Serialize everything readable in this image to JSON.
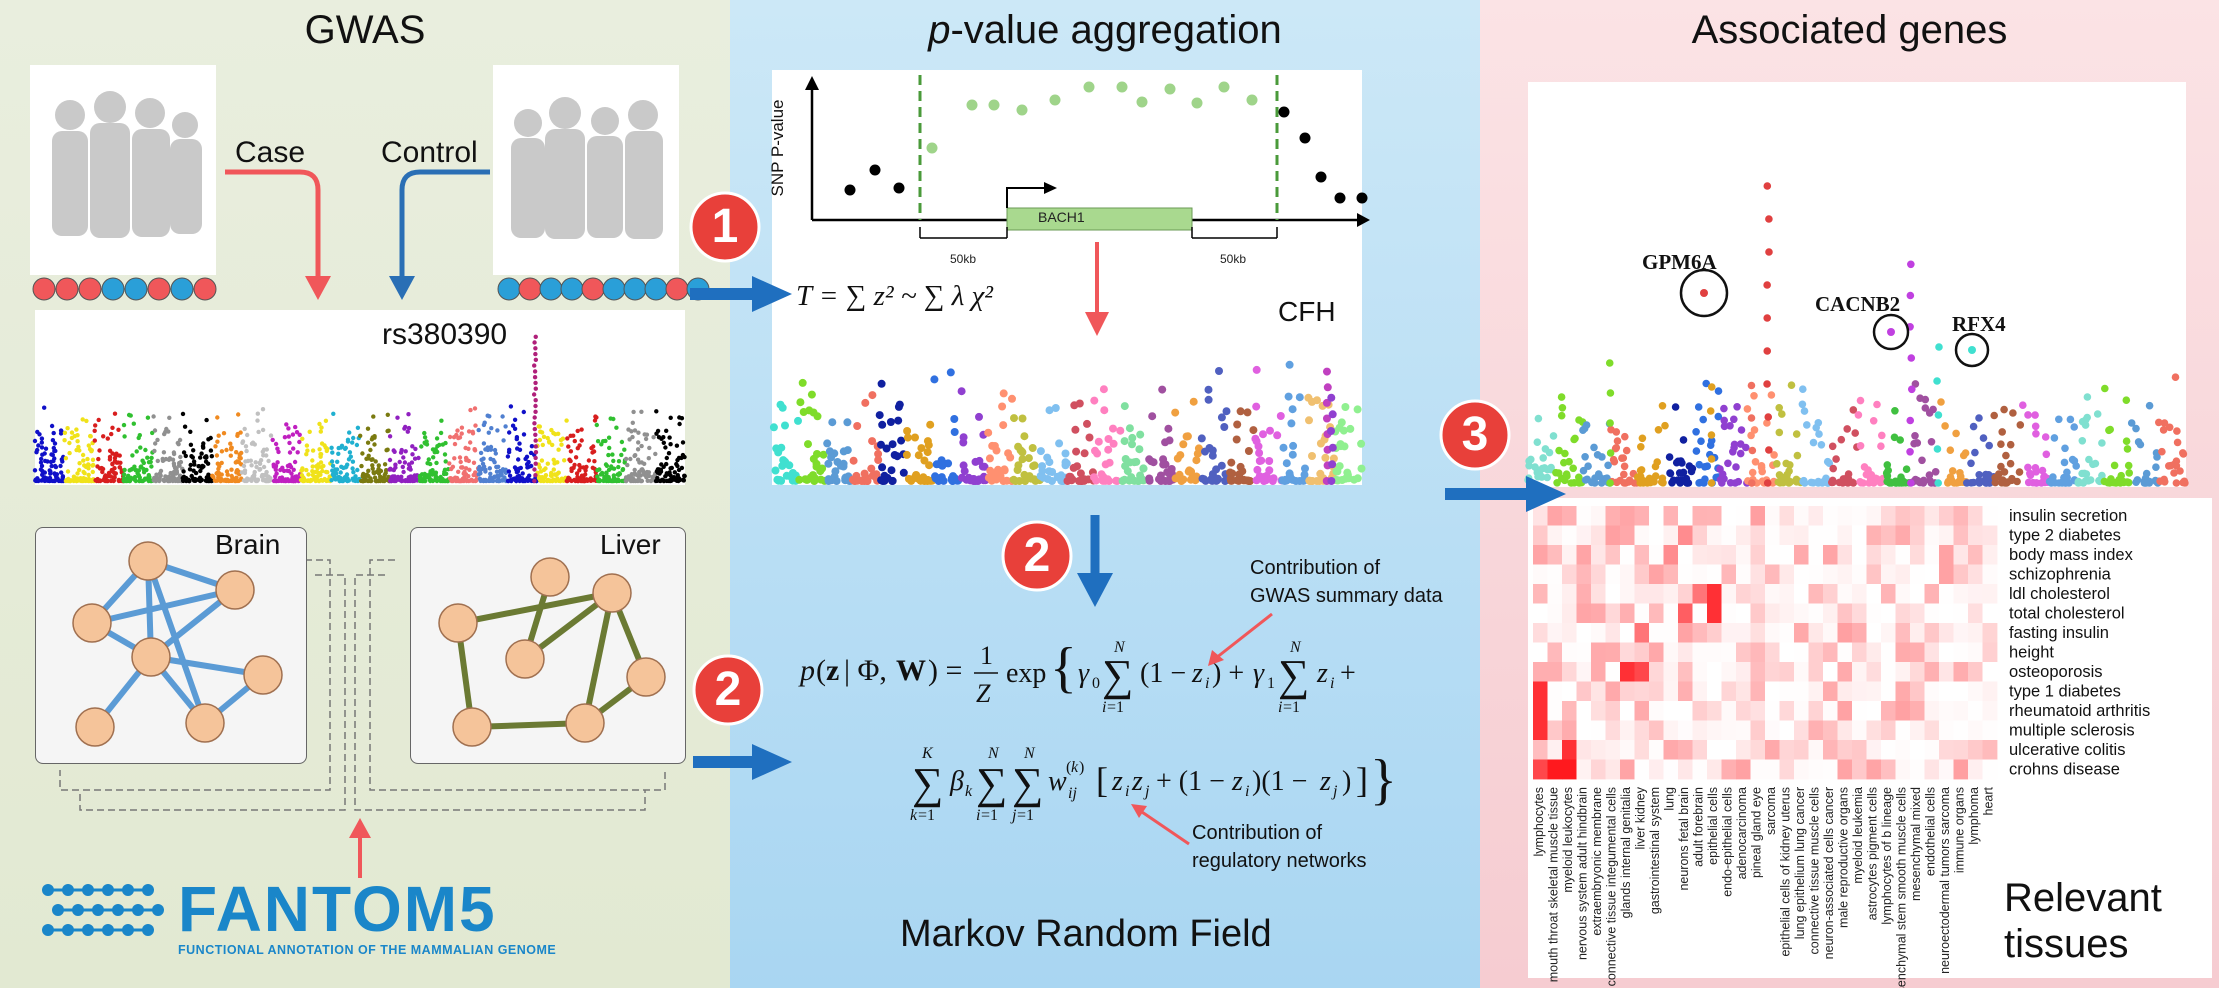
{
  "panels": {
    "gwas": {
      "title": "GWAS"
    },
    "aggregation": {
      "title_italic": "p",
      "title_rest": "-value aggregation"
    },
    "genes": {
      "title": "Associated genes"
    }
  },
  "gwas": {
    "case_label": "Case",
    "control_label": "Control",
    "snp_label": "rs380390",
    "network_labels": {
      "brain": "Brain",
      "liver": "Liver"
    },
    "fantom": {
      "logo_text": "FANTOM5",
      "subtitle": "FUNCTIONAL ANNOTATION OF THE MAMMALIAN GENOME"
    }
  },
  "steps": {
    "one": "1",
    "two": "2",
    "three": "3"
  },
  "aggregation": {
    "snp_axis_label": "SNP P-value",
    "gene_label": "BACH1",
    "flank_left": "50kb",
    "flank_right": "50kb",
    "formula_t": "T = ∑ z² ~ ∑ λ χ²",
    "cfh_label": "CFH",
    "contribution_gwas": [
      "Contribution of",
      "GWAS summary data"
    ],
    "contribution_networks": [
      "Contribution of",
      "regulatory networks"
    ],
    "mrf_title": "Markov Random Field"
  },
  "genes": {
    "gene_labels": [
      "GPM6A",
      "CACNB2",
      "RFX4"
    ],
    "relevant_tissues": [
      "Relevant",
      "tissues"
    ]
  },
  "colors": {
    "accent_blue": "#1f6fbf",
    "step_red": "#e8403a",
    "case_red": "#f0575a",
    "control_blue": "#2a6fb5"
  },
  "heatmap": {
    "traits": [
      "insulin secretion",
      "type 2 diabetes",
      "body mass index",
      "schizophrenia",
      "ldl cholesterol",
      "total cholesterol",
      "fasting insulin",
      "height",
      "osteoporosis",
      "type 1 diabetes",
      "rheumatoid arthritis",
      "multiple sclerosis",
      "ulcerative colitis",
      "crohns disease"
    ],
    "tissues": [
      "lymphocytes",
      "mouth throat skeletal muscle tissue",
      "myeloid leukocytes",
      "nervous system adult hindbrain",
      "extraembryonic membrane",
      "connective tissue integumental cells",
      "glands internal genitalia",
      "liver kidney",
      "gastrointestinal system",
      "lung",
      "neurons fetal brain",
      "adult forebrain",
      "epithelial cells",
      "endo-epithelial cells",
      "adenocarcinoma",
      "pineal gland eye",
      "sarcoma",
      "epithelial cells of kidney uterus",
      "lung epithelium lung cancer",
      "connective tissue muscle cells",
      "neuron-associated cells cancer",
      "male reproductive organs",
      "myeloid leukemia",
      "astrocytes pigment cells",
      "lymphocytes of b lineage",
      "mesenchymal stem smooth muscle cells",
      "mesenchymal mixed",
      "endothelial cells",
      "neuroectodermal tumors sarcoma",
      "immune organs",
      "lymphoma",
      "heart"
    ]
  }
}
